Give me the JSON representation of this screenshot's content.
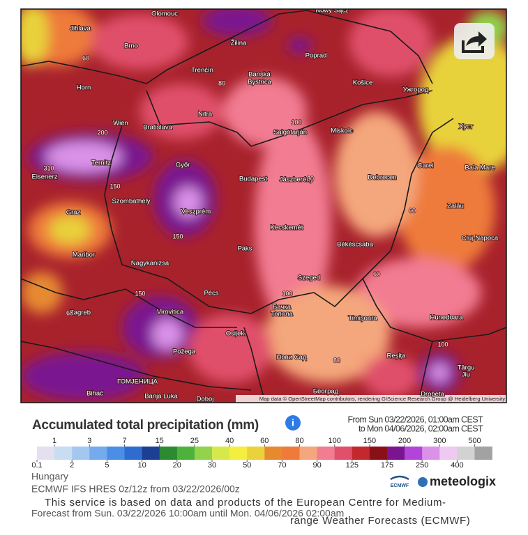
{
  "map": {
    "cities": [
      "Olomouc",
      "Nowy Sącz",
      "Jihlava",
      "Brno",
      "Žilina",
      "Poprad",
      "Trenčín",
      "Banská",
      "Bystrica",
      "Košice",
      "Ужгород",
      "Horn",
      "Nitra",
      "Wien",
      "Bratislava",
      "Salgótarján",
      "Miskolc",
      "Хуст",
      "Győr",
      "Budapest",
      "Jászberény",
      "Debrecen",
      "Carei",
      "Baia Mare",
      "Ternitz",
      "Eisenerz",
      "Szombathely",
      "Veszprém",
      "Zalău",
      "Graz",
      "Kecskemét",
      "Békéscsaba",
      "Cluj-Napoca",
      "Maribor",
      "Paks",
      "Nagykanizsa",
      "Szeged",
      "Pécs",
      "Zagreb",
      "Virovitica",
      "Osijek",
      "Бачка",
      "Топола",
      "Timișoara",
      "Hunedoara",
      "Požega",
      "Нови Сад",
      "Reșița",
      "Târgu",
      "Jiu",
      "Bihać",
      "Banja Luka",
      "Doboj",
      "ГОМЈЕНИЦА",
      "Београд",
      "Drobeta"
    ],
    "contours": [
      "60",
      "80",
      "100",
      "200",
      "310",
      "150",
      "150",
      "100",
      "60",
      "60",
      "80",
      "80",
      "60",
      "100",
      "150"
    ],
    "attribution": "Map data © OpenStreetMap contributors, rendering GIScience Research Group @ Heidelberg University"
  },
  "legend": {
    "title": "Accumulated total precipitation (mm)",
    "info": "i",
    "period": [
      "From Sun 03/22/2026, 01:00am CEST",
      "to Mon 04/06/2026, 02:00am CEST"
    ],
    "labels": [
      "0.1",
      "1",
      "2",
      "3",
      "5",
      "7",
      "10",
      "15",
      "20",
      "25",
      "30",
      "40",
      "50",
      "60",
      "70",
      "80",
      "90",
      "100",
      "125",
      "150",
      "175",
      "200",
      "250",
      "300",
      "400",
      "500"
    ],
    "colors": [
      "#e4e0f0",
      "#c8dcf2",
      "#a2c8f0",
      "#74aaee",
      "#4a8ee6",
      "#2f6cd0",
      "#1c3f92",
      "#2c8a30",
      "#4cb23c",
      "#92d24c",
      "#d6e84c",
      "#f4ee3e",
      "#ead23c",
      "#e68a30",
      "#f07a3a",
      "#f4a67c",
      "#f27c92",
      "#e0506a",
      "#c2282e",
      "#8a1018",
      "#7a1490",
      "#b244d8",
      "#da92e8",
      "#eecaf2",
      "#d2d2d2",
      "#a2a2a2"
    ]
  },
  "footer": {
    "region": "Hungary",
    "model": "ECMWF IFS HRES 0z/12z from 03/22/2026/00z",
    "disclaimer": [
      "This service is based on data and products of the European Centre for Medium-",
      "range Weather Forecasts (ECMWF)"
    ],
    "forecast": "Forecast from Sun. 03/22/2026 10:00am until Mon. 04/06/2026 02:00am",
    "ecmwf": "ECMWF",
    "brand": "meteologix"
  }
}
